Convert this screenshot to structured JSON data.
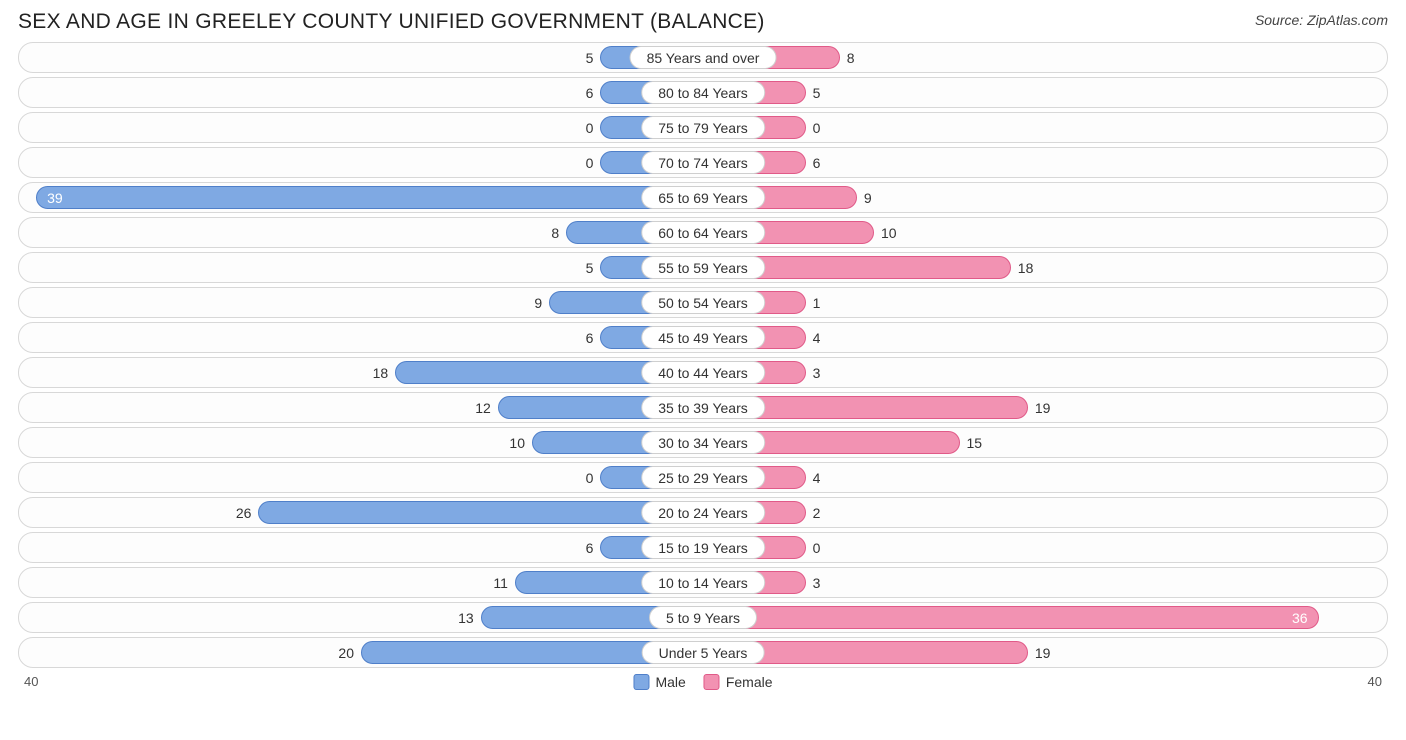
{
  "title": "SEX AND AGE IN GREELEY COUNTY UNIFIED GOVERNMENT (BALANCE)",
  "source": "Source: ZipAtlas.com",
  "chart": {
    "type": "population-pyramid-horizontal",
    "axis_max": 40,
    "axis_left_label": "40",
    "axis_right_label": "40",
    "track_border_color": "#d8d8d8",
    "track_bg": "#fdfdfd",
    "pill_border_color": "#cfcfcf",
    "pill_bg": "#ffffff",
    "min_bar_units": 6,
    "label_fontsize": 14,
    "colors": {
      "male_fill": "#7fa9e3",
      "male_border": "#4f7fc9",
      "female_fill": "#f292b2",
      "female_border": "#e05a88"
    },
    "legend": {
      "male": "Male",
      "female": "Female"
    },
    "rows": [
      {
        "category": "85 Years and over",
        "male": 5,
        "female": 8
      },
      {
        "category": "80 to 84 Years",
        "male": 6,
        "female": 5
      },
      {
        "category": "75 to 79 Years",
        "male": 0,
        "female": 0
      },
      {
        "category": "70 to 74 Years",
        "male": 0,
        "female": 6
      },
      {
        "category": "65 to 69 Years",
        "male": 39,
        "female": 9
      },
      {
        "category": "60 to 64 Years",
        "male": 8,
        "female": 10
      },
      {
        "category": "55 to 59 Years",
        "male": 5,
        "female": 18
      },
      {
        "category": "50 to 54 Years",
        "male": 9,
        "female": 1
      },
      {
        "category": "45 to 49 Years",
        "male": 6,
        "female": 4
      },
      {
        "category": "40 to 44 Years",
        "male": 18,
        "female": 3
      },
      {
        "category": "35 to 39 Years",
        "male": 12,
        "female": 19
      },
      {
        "category": "30 to 34 Years",
        "male": 10,
        "female": 15
      },
      {
        "category": "25 to 29 Years",
        "male": 0,
        "female": 4
      },
      {
        "category": "20 to 24 Years",
        "male": 26,
        "female": 2
      },
      {
        "category": "15 to 19 Years",
        "male": 6,
        "female": 0
      },
      {
        "category": "10 to 14 Years",
        "male": 11,
        "female": 3
      },
      {
        "category": "5 to 9 Years",
        "male": 13,
        "female": 36
      },
      {
        "category": "Under 5 Years",
        "male": 20,
        "female": 19
      }
    ]
  }
}
